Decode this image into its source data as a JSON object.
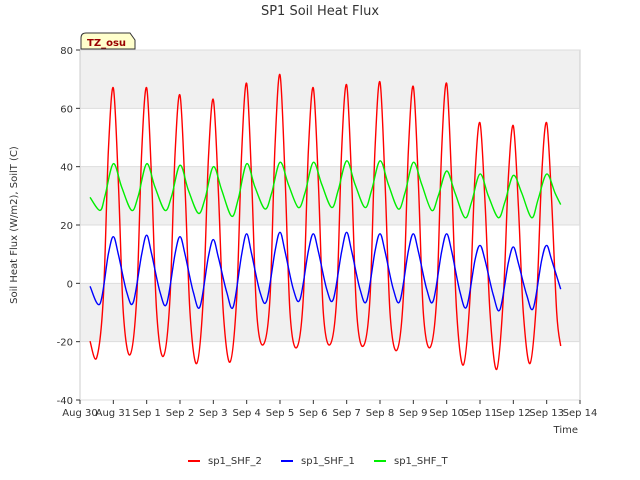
{
  "chart_data": {
    "type": "line",
    "title": "SP1 Soil Heat Flux",
    "xlabel": "Time",
    "ylabel": "Soil Heat Flux (W/m2), SoilT (C)",
    "badge": "TZ_osu",
    "ylim": [
      -40,
      80
    ],
    "yticks": [
      -40,
      -20,
      0,
      20,
      40,
      60,
      80
    ],
    "xlim": [
      0,
      15
    ],
    "xticks": [
      {
        "x": 0,
        "label": "Aug 30"
      },
      {
        "x": 1,
        "label": "Aug 31"
      },
      {
        "x": 2,
        "label": "Sep 1"
      },
      {
        "x": 3,
        "label": "Sep 2"
      },
      {
        "x": 4,
        "label": "Sep 3"
      },
      {
        "x": 5,
        "label": "Sep 4"
      },
      {
        "x": 6,
        "label": "Sep 5"
      },
      {
        "x": 7,
        "label": "Sep 6"
      },
      {
        "x": 8,
        "label": "Sep 7"
      },
      {
        "x": 9,
        "label": "Sep 8"
      },
      {
        "x": 10,
        "label": "Sep 9"
      },
      {
        "x": 11,
        "label": "Sep 10"
      },
      {
        "x": 12,
        "label": "Sep 11"
      },
      {
        "x": 13,
        "label": "Sep 12"
      },
      {
        "x": 14,
        "label": "Sep 13"
      },
      {
        "x": 15,
        "label": "Sep 14"
      }
    ],
    "grid": true,
    "legend_position": "bottom",
    "series": [
      {
        "name": "sp1_SHF_2",
        "color": "#ff0000",
        "x": [
          0.3,
          0.5,
          0.7,
          0.85,
          1.0,
          1.15,
          1.3,
          1.5,
          1.7,
          1.85,
          2.0,
          2.15,
          2.3,
          2.5,
          2.7,
          2.85,
          3.0,
          3.15,
          3.3,
          3.5,
          3.7,
          3.85,
          4.0,
          4.15,
          4.3,
          4.5,
          4.7,
          4.85,
          5.0,
          5.15,
          5.3,
          5.5,
          5.7,
          5.85,
          6.0,
          6.15,
          6.3,
          6.5,
          6.7,
          6.85,
          7.0,
          7.15,
          7.3,
          7.5,
          7.7,
          7.85,
          8.0,
          8.15,
          8.3,
          8.5,
          8.7,
          8.85,
          9.0,
          9.15,
          9.3,
          9.5,
          9.7,
          9.85,
          10.0,
          10.15,
          10.3,
          10.5,
          10.7,
          10.85,
          11.0,
          11.15,
          11.3,
          11.5,
          11.7,
          11.85,
          12.0,
          12.15,
          12.3,
          12.5,
          12.7,
          12.85,
          13.0,
          13.15,
          13.3,
          13.5,
          13.7,
          13.85,
          14.0,
          14.15,
          14.3,
          14.42
        ],
        "y": [
          -19.8,
          -25.5,
          -5,
          45,
          67,
          35,
          -10,
          -24.5,
          -5,
          45,
          67,
          35,
          -10,
          -25,
          -5,
          44,
          64.5,
          33,
          -10,
          -27.5,
          -5,
          42,
          63,
          32,
          -10,
          -27,
          -5,
          45,
          68.5,
          35,
          -10,
          -21,
          -5,
          47,
          71.5,
          37,
          -10,
          -22,
          -5,
          45,
          67,
          35,
          -10,
          -21,
          -5,
          46,
          68,
          35,
          -10,
          -21.5,
          -5,
          46,
          69,
          35,
          -10,
          -23,
          -5,
          45,
          67.5,
          35,
          -10,
          -22,
          -5,
          46,
          68.5,
          35,
          -10,
          -28,
          -5,
          37,
          55,
          28,
          -10,
          -29.5,
          -5,
          36,
          54,
          27,
          -10,
          -27.5,
          -5,
          37,
          55,
          28,
          -10,
          -21.5
        ]
      },
      {
        "name": "sp1_SHF_1",
        "color": "#0000ff",
        "x": [
          0.3,
          0.6,
          0.85,
          1.0,
          1.15,
          1.4,
          1.6,
          1.85,
          2.0,
          2.15,
          2.4,
          2.6,
          2.85,
          3.0,
          3.15,
          3.4,
          3.6,
          3.85,
          4.0,
          4.15,
          4.4,
          4.6,
          4.85,
          5.0,
          5.15,
          5.4,
          5.6,
          5.85,
          6.0,
          6.15,
          6.4,
          6.6,
          6.85,
          7.0,
          7.15,
          7.4,
          7.6,
          7.85,
          8.0,
          8.15,
          8.4,
          8.6,
          8.85,
          9.0,
          9.15,
          9.4,
          9.6,
          9.85,
          10.0,
          10.15,
          10.4,
          10.6,
          10.85,
          11.0,
          11.15,
          11.4,
          11.6,
          11.85,
          12.0,
          12.15,
          12.4,
          12.6,
          12.85,
          13.0,
          13.15,
          13.4,
          13.6,
          13.85,
          14.0,
          14.15,
          14.42
        ],
        "y": [
          -1,
          -7,
          10,
          16,
          10,
          -3,
          -6.5,
          10,
          16.5,
          10,
          -3,
          -7,
          10,
          16,
          10,
          -3,
          -8,
          9,
          15,
          9,
          -3,
          -8,
          10,
          17,
          10,
          -3,
          -6,
          11,
          17.5,
          11,
          -2,
          -5.5,
          11,
          17,
          11,
          -2,
          -5.5,
          11,
          17.5,
          11,
          -2,
          -6,
          11,
          17,
          11,
          -2,
          -6,
          11,
          17,
          11,
          -2,
          -6,
          11,
          17,
          11,
          -3,
          -8,
          8,
          13,
          8,
          -4,
          -9,
          7,
          12.5,
          7,
          -4,
          -8.5,
          8,
          13,
          8,
          -2
        ]
      },
      {
        "name": "sp1_SHF_T",
        "color": "#00ee00",
        "x": [
          0.3,
          0.6,
          0.75,
          1.0,
          1.25,
          1.55,
          1.75,
          2.0,
          2.25,
          2.55,
          2.75,
          3.0,
          3.25,
          3.55,
          3.75,
          4.0,
          4.25,
          4.55,
          4.75,
          5.0,
          5.25,
          5.55,
          5.75,
          6.0,
          6.25,
          6.55,
          6.75,
          7.0,
          7.25,
          7.55,
          7.75,
          8.0,
          8.25,
          8.55,
          8.75,
          9.0,
          9.25,
          9.55,
          9.75,
          10.0,
          10.25,
          10.55,
          10.75,
          11.0,
          11.25,
          11.55,
          11.75,
          12.0,
          12.25,
          12.55,
          12.75,
          13.0,
          13.25,
          13.55,
          13.75,
          14.0,
          14.25,
          14.42
        ],
        "y": [
          29.5,
          25,
          30,
          41,
          33,
          25,
          30,
          41,
          33,
          25,
          30,
          40.5,
          32,
          24,
          29,
          40,
          32,
          23,
          29,
          41,
          33,
          25.5,
          31,
          41.5,
          34,
          26,
          31,
          41.5,
          34,
          26,
          32,
          42,
          34,
          26,
          32,
          42,
          34,
          25.5,
          31,
          41.5,
          34,
          25,
          30,
          38.5,
          31,
          22.5,
          28,
          37.5,
          30,
          22.5,
          28,
          37,
          31,
          22.5,
          29,
          37.5,
          31,
          27
        ]
      }
    ]
  }
}
